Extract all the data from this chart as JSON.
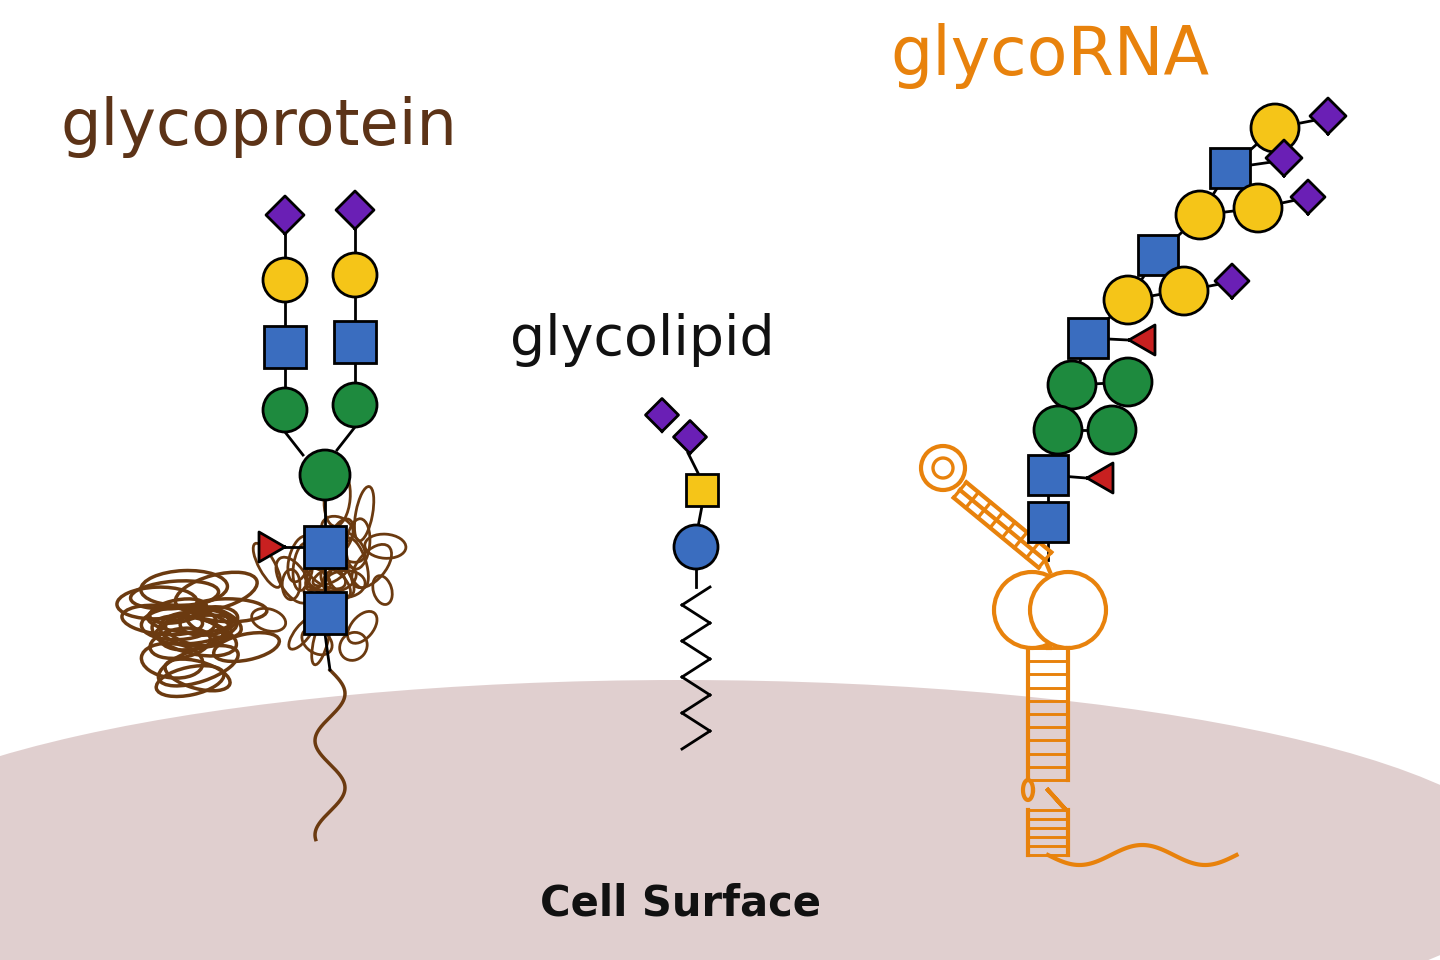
{
  "bg_color": "#ffffff",
  "cell_surface_color": "#c8a8a8",
  "glycoprotein_label": "glycoprotein",
  "glycoprotein_color": "#5c3317",
  "glycolipid_label": "glycolipid",
  "glycolipid_color": "#111111",
  "glycorna_label": "glycoRNA",
  "glycorna_color": "#e8820c",
  "cell_surface_label": "Cell Surface",
  "cell_surface_label_color": "#111111",
  "purple": "#6a1fb5",
  "yellow": "#f5c518",
  "blue": "#3a6dbf",
  "green": "#1e8a3e",
  "red": "#c82020",
  "brown": "#6b3a10",
  "orange": "#e8820c",
  "black": "#111111"
}
